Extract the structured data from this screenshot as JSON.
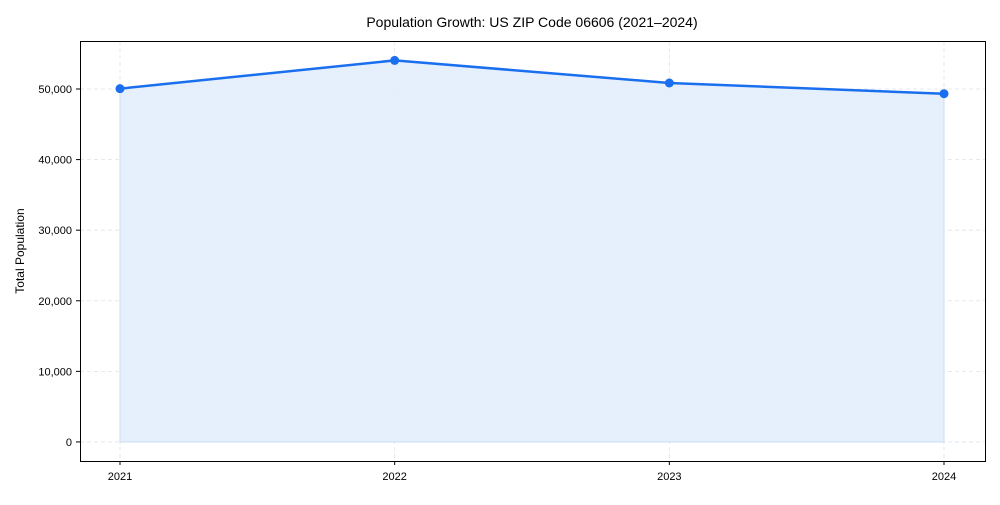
{
  "chart_data": {
    "type": "area",
    "title": "Population Growth: US ZIP Code 06606 (2021–2024)",
    "xlabel": "",
    "ylabel": "Total Population",
    "x": [
      "2021",
      "2022",
      "2023",
      "2024"
    ],
    "series": [
      {
        "name": "Total Population",
        "values": [
          50050,
          54050,
          50850,
          49330
        ],
        "color": "#1a6fef",
        "fill": "#e3eefd"
      }
    ],
    "yticks": [
      0,
      10000,
      20000,
      30000,
      40000,
      50000
    ],
    "ytick_labels": [
      "0",
      "10,000",
      "20,000",
      "30,000",
      "40,000",
      "50,000"
    ],
    "ylim": [
      -2700,
      56800
    ],
    "grid": true
  }
}
